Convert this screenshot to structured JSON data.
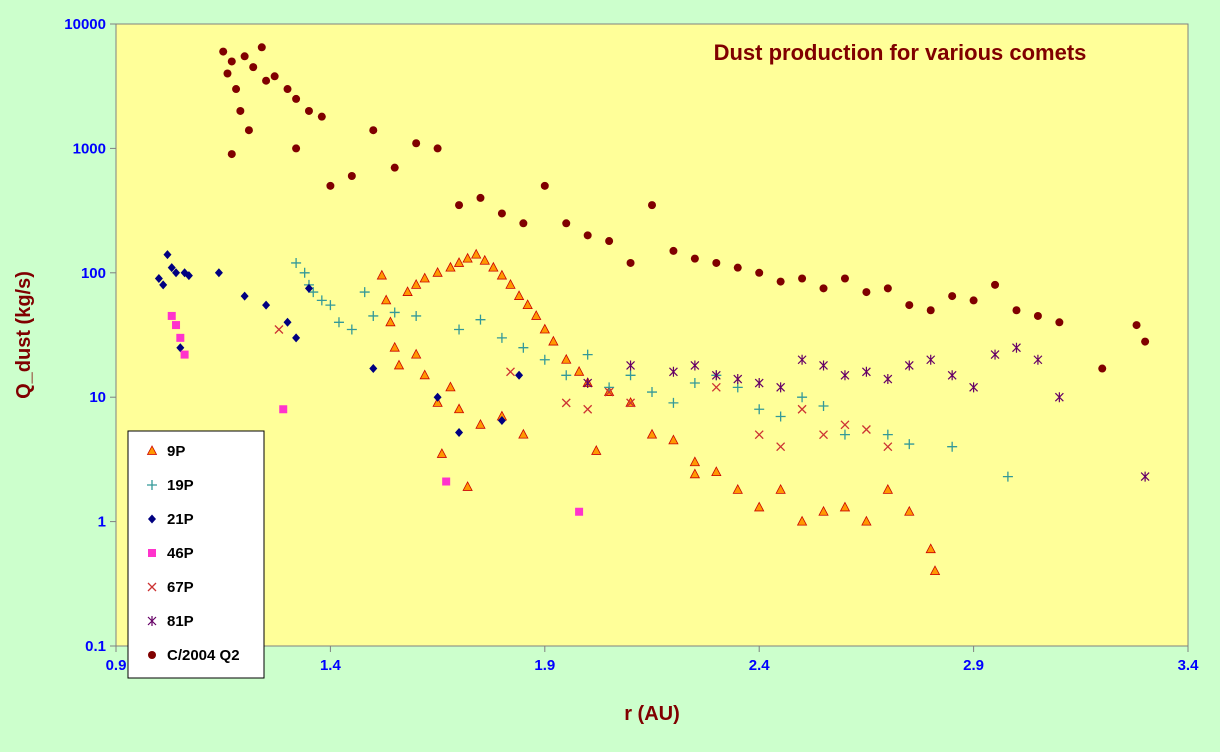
{
  "chart_data": {
    "type": "scatter",
    "title": "Dust production for various comets",
    "xlabel": "r (AU)",
    "ylabel": "Q_dust (kg/s)",
    "xlim": [
      0.9,
      3.4
    ],
    "ylim": [
      0.1,
      10000
    ],
    "yscale": "log",
    "x_ticks": [
      "0.9",
      "1.4",
      "1.9",
      "2.4",
      "2.9",
      "3.4"
    ],
    "y_ticks": [
      "0.1",
      "1",
      "10",
      "100",
      "1000",
      "10000"
    ],
    "grid": false,
    "legend_position": "bottom-left",
    "colors": {
      "outer_background": "#ccffcc",
      "plot_background": "#ffff99",
      "axis": "#808080"
    },
    "series": [
      {
        "name": "9P",
        "marker": "triangle",
        "color": "#ff9900",
        "edge": "#cc0000",
        "points": [
          [
            1.52,
            95
          ],
          [
            1.53,
            60
          ],
          [
            1.54,
            40
          ],
          [
            1.55,
            25
          ],
          [
            1.56,
            18
          ],
          [
            1.58,
            70
          ],
          [
            1.6,
            80
          ],
          [
            1.62,
            90
          ],
          [
            1.65,
            100
          ],
          [
            1.68,
            110
          ],
          [
            1.7,
            120
          ],
          [
            1.72,
            130
          ],
          [
            1.74,
            140
          ],
          [
            1.76,
            125
          ],
          [
            1.78,
            110
          ],
          [
            1.8,
            95
          ],
          [
            1.82,
            80
          ],
          [
            1.84,
            65
          ],
          [
            1.86,
            55
          ],
          [
            1.88,
            45
          ],
          [
            1.9,
            35
          ],
          [
            1.92,
            28
          ],
          [
            1.95,
            20
          ],
          [
            1.98,
            16
          ],
          [
            2.0,
            13
          ],
          [
            2.05,
            11
          ],
          [
            2.1,
            9
          ],
          [
            2.15,
            5
          ],
          [
            2.2,
            4.5
          ],
          [
            2.25,
            3
          ],
          [
            2.3,
            2.5
          ],
          [
            2.35,
            1.8
          ],
          [
            2.4,
            1.3
          ],
          [
            2.45,
            1.8
          ],
          [
            2.5,
            1.0
          ],
          [
            2.55,
            1.2
          ],
          [
            2.6,
            1.3
          ],
          [
            2.65,
            1.0
          ],
          [
            2.7,
            1.8
          ],
          [
            2.75,
            1.2
          ],
          [
            2.8,
            0.6
          ],
          [
            2.81,
            0.4
          ],
          [
            1.6,
            22
          ],
          [
            1.65,
            9
          ],
          [
            1.7,
            8
          ],
          [
            1.75,
            6
          ],
          [
            1.8,
            7
          ],
          [
            1.85,
            5
          ],
          [
            1.62,
            15
          ],
          [
            1.66,
            3.5
          ],
          [
            1.72,
            1.9
          ],
          [
            1.68,
            12
          ],
          [
            2.02,
            3.7
          ],
          [
            2.25,
            2.4
          ]
        ]
      },
      {
        "name": "19P",
        "marker": "plus",
        "color": "#339999",
        "points": [
          [
            1.32,
            120
          ],
          [
            1.34,
            100
          ],
          [
            1.35,
            80
          ],
          [
            1.36,
            70
          ],
          [
            1.38,
            60
          ],
          [
            1.4,
            55
          ],
          [
            1.42,
            40
          ],
          [
            1.45,
            35
          ],
          [
            1.48,
            70
          ],
          [
            1.5,
            45
          ],
          [
            1.55,
            48
          ],
          [
            1.6,
            45
          ],
          [
            1.7,
            35
          ],
          [
            1.75,
            42
          ],
          [
            1.8,
            30
          ],
          [
            1.85,
            25
          ],
          [
            1.9,
            20
          ],
          [
            1.95,
            15
          ],
          [
            2.0,
            22
          ],
          [
            2.05,
            12
          ],
          [
            2.1,
            15
          ],
          [
            2.15,
            11
          ],
          [
            2.2,
            9
          ],
          [
            2.25,
            13
          ],
          [
            2.3,
            15
          ],
          [
            2.35,
            12
          ],
          [
            2.4,
            8
          ],
          [
            2.45,
            7
          ],
          [
            2.5,
            10
          ],
          [
            2.55,
            8.5
          ],
          [
            2.6,
            5
          ],
          [
            2.7,
            5
          ],
          [
            2.75,
            4.2
          ],
          [
            2.85,
            4.0
          ],
          [
            2.98,
            2.3
          ]
        ]
      },
      {
        "name": "21P",
        "marker": "diamond",
        "color": "#000080",
        "points": [
          [
            1.0,
            90
          ],
          [
            1.01,
            80
          ],
          [
            1.02,
            140
          ],
          [
            1.03,
            110
          ],
          [
            1.04,
            100
          ],
          [
            1.05,
            25
          ],
          [
            1.06,
            100
          ],
          [
            1.07,
            95
          ],
          [
            1.14,
            100
          ],
          [
            1.2,
            65
          ],
          [
            1.25,
            55
          ],
          [
            1.3,
            40
          ],
          [
            1.32,
            30
          ],
          [
            1.35,
            75
          ],
          [
            1.5,
            17
          ],
          [
            1.65,
            10
          ],
          [
            1.7,
            5.2
          ],
          [
            1.8,
            6.5
          ],
          [
            1.84,
            15
          ]
        ]
      },
      {
        "name": "46P",
        "marker": "square",
        "color": "#ff33cc",
        "points": [
          [
            1.03,
            45
          ],
          [
            1.04,
            38
          ],
          [
            1.05,
            30
          ],
          [
            1.06,
            22
          ],
          [
            1.29,
            8
          ],
          [
            1.67,
            2.1
          ],
          [
            1.98,
            1.2
          ]
        ]
      },
      {
        "name": "67P",
        "marker": "x",
        "color": "#cc3333",
        "points": [
          [
            1.28,
            35
          ],
          [
            1.82,
            16
          ],
          [
            1.95,
            9
          ],
          [
            2.0,
            8
          ],
          [
            2.05,
            11
          ],
          [
            2.1,
            9
          ],
          [
            2.3,
            12
          ],
          [
            2.4,
            5
          ],
          [
            2.45,
            4
          ],
          [
            2.5,
            8
          ],
          [
            2.55,
            5
          ],
          [
            2.6,
            6
          ],
          [
            2.65,
            5.5
          ],
          [
            2.7,
            4
          ]
        ]
      },
      {
        "name": "81P",
        "marker": "star",
        "color": "#660066",
        "points": [
          [
            2.0,
            13
          ],
          [
            2.1,
            18
          ],
          [
            2.2,
            16
          ],
          [
            2.25,
            18
          ],
          [
            2.3,
            15
          ],
          [
            2.35,
            14
          ],
          [
            2.4,
            13
          ],
          [
            2.45,
            12
          ],
          [
            2.5,
            20
          ],
          [
            2.55,
            18
          ],
          [
            2.6,
            15
          ],
          [
            2.65,
            16
          ],
          [
            2.7,
            14
          ],
          [
            2.75,
            18
          ],
          [
            2.8,
            20
          ],
          [
            2.85,
            15
          ],
          [
            2.9,
            12
          ],
          [
            2.95,
            22
          ],
          [
            3.0,
            25
          ],
          [
            3.05,
            20
          ],
          [
            3.1,
            10
          ],
          [
            3.3,
            2.3
          ]
        ]
      },
      {
        "name": "C/2004 Q2",
        "marker": "circle",
        "color": "#800000",
        "points": [
          [
            1.15,
            6000
          ],
          [
            1.16,
            4000
          ],
          [
            1.17,
            5000
          ],
          [
            1.18,
            3000
          ],
          [
            1.19,
            2000
          ],
          [
            1.2,
            5500
          ],
          [
            1.22,
            4500
          ],
          [
            1.24,
            6500
          ],
          [
            1.25,
            3500
          ],
          [
            1.27,
            3800
          ],
          [
            1.3,
            3000
          ],
          [
            1.32,
            2500
          ],
          [
            1.35,
            2000
          ],
          [
            1.38,
            1800
          ],
          [
            1.4,
            500
          ],
          [
            1.45,
            600
          ],
          [
            1.5,
            1400
          ],
          [
            1.55,
            700
          ],
          [
            1.6,
            1100
          ],
          [
            1.65,
            1000
          ],
          [
            1.7,
            350
          ],
          [
            1.75,
            400
          ],
          [
            1.8,
            300
          ],
          [
            1.85,
            250
          ],
          [
            1.9,
            500
          ],
          [
            1.95,
            250
          ],
          [
            2.0,
            200
          ],
          [
            2.05,
            180
          ],
          [
            2.1,
            120
          ],
          [
            2.15,
            350
          ],
          [
            2.2,
            150
          ],
          [
            2.25,
            130
          ],
          [
            2.3,
            120
          ],
          [
            2.35,
            110
          ],
          [
            2.4,
            100
          ],
          [
            2.45,
            85
          ],
          [
            2.5,
            90
          ],
          [
            2.55,
            75
          ],
          [
            2.6,
            90
          ],
          [
            2.65,
            70
          ],
          [
            2.7,
            75
          ],
          [
            2.75,
            55
          ],
          [
            2.8,
            50
          ],
          [
            2.85,
            65
          ],
          [
            2.9,
            60
          ],
          [
            2.95,
            80
          ],
          [
            3.0,
            50
          ],
          [
            3.05,
            45
          ],
          [
            3.1,
            40
          ],
          [
            3.2,
            17
          ],
          [
            3.3,
            28
          ],
          [
            3.28,
            38
          ],
          [
            1.32,
            1000
          ],
          [
            1.17,
            900
          ],
          [
            1.21,
            1400
          ]
        ]
      }
    ]
  }
}
